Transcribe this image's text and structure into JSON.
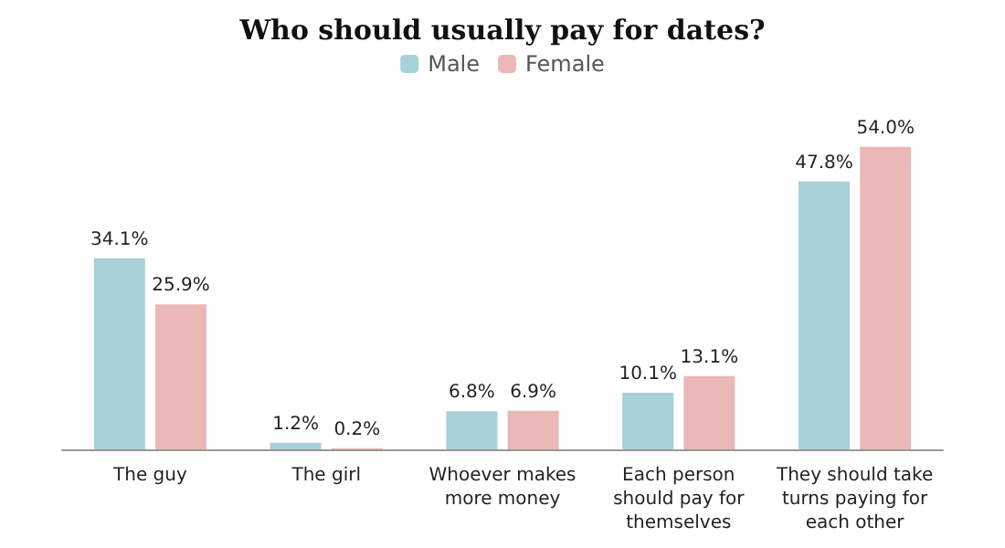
{
  "chart_data": {
    "type": "bar",
    "title": "Who should usually pay for dates?",
    "categories": [
      "The guy",
      "The girl",
      "Whoever makes\nmore money",
      "Each person\nshould pay for\nthemselves",
      "They should take\nturns paying for\neach other"
    ],
    "series": [
      {
        "name": "Male",
        "color": "#a8d0d8",
        "values": [
          34.1,
          1.2,
          6.8,
          10.1,
          47.8
        ],
        "value_labels": [
          "34.1%",
          "1.2%",
          "6.8%",
          "10.1%",
          "47.8%"
        ]
      },
      {
        "name": "Female",
        "color": "#ebb8b8",
        "values": [
          25.9,
          0.2,
          6.9,
          13.1,
          54.0
        ],
        "value_labels": [
          "25.9%",
          "0.2%",
          "6.9%",
          "13.1%",
          "54.0%"
        ]
      }
    ],
    "legend": "top"
  }
}
